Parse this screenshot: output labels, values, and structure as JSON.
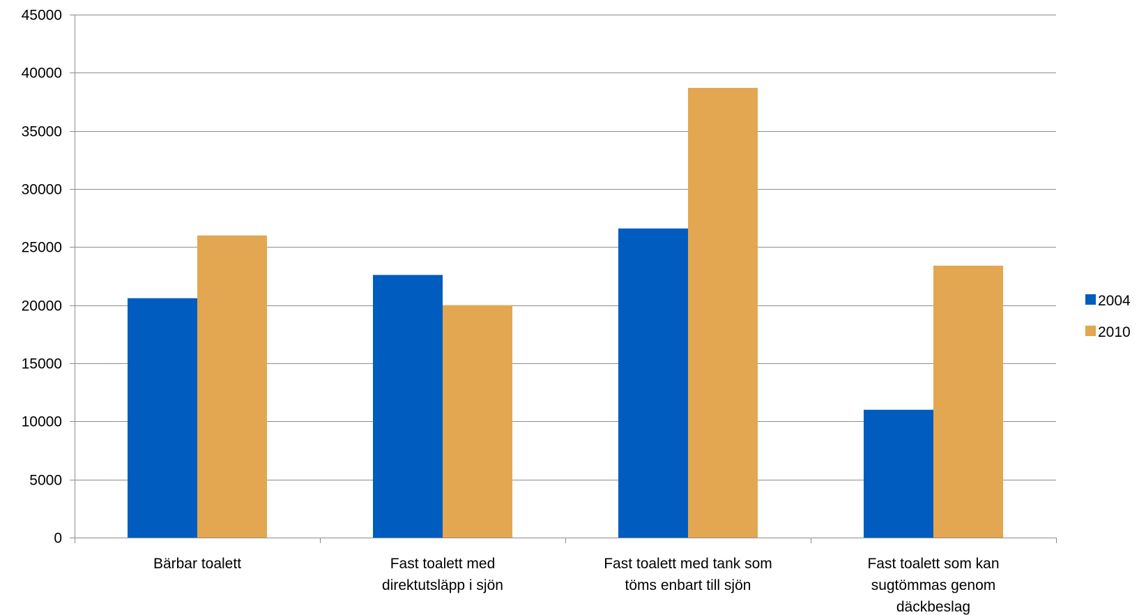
{
  "chart_data": {
    "type": "bar",
    "title": "",
    "xlabel": "",
    "ylabel": "",
    "ylim": [
      0,
      45000
    ],
    "yticks": [
      "0",
      "5000",
      "10000",
      "15000",
      "20000",
      "25000",
      "30000",
      "35000",
      "40000",
      "45000"
    ],
    "grid": true,
    "legend_position": "right",
    "categories": [
      [
        "Bärbar toalett"
      ],
      [
        "Fast toalett med",
        "direktutsläpp i sjön"
      ],
      [
        "Fast toalett med tank som",
        "töms enbart till sjön"
      ],
      [
        "Fast toalett som kan",
        "sugtömmas genom",
        "däckbeslag"
      ]
    ],
    "series": [
      {
        "name": "2004",
        "color": "#005CBF",
        "values": [
          20600,
          22600,
          26600,
          11000
        ]
      },
      {
        "name": "2010",
        "color": "#E2A750",
        "values": [
          26000,
          20000,
          38700,
          23400
        ]
      }
    ]
  }
}
